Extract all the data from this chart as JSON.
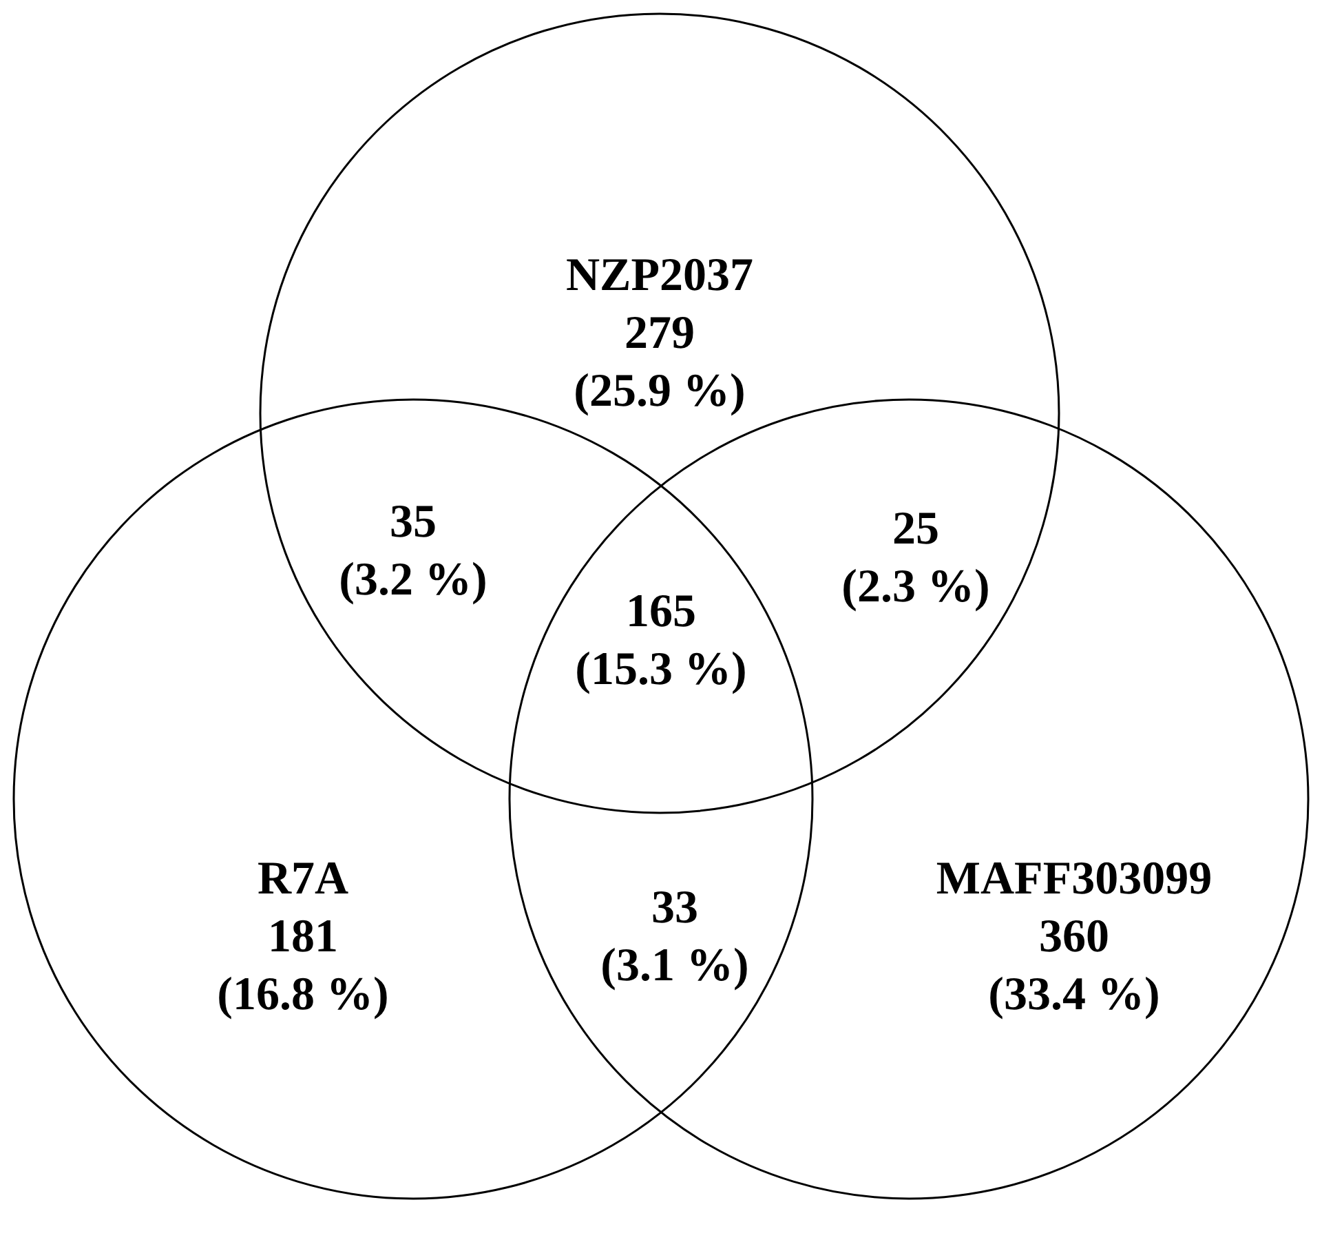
{
  "chart_data": {
    "type": "other",
    "categories": [
      "NZP2037",
      "R7A",
      "MAFF303099"
    ],
    "values": [
      279,
      181,
      360
    ],
    "data_labels": true,
    "annotations": [
      "(25.9 %)",
      "(16.8 %)",
      "(33.4 %)",
      "35\n(3.2 %)",
      "25\n(2.3 %)",
      "33\n(3.1 %)",
      "165\n(15.3 %)"
    ],
    "color": "#000000"
  }
}
